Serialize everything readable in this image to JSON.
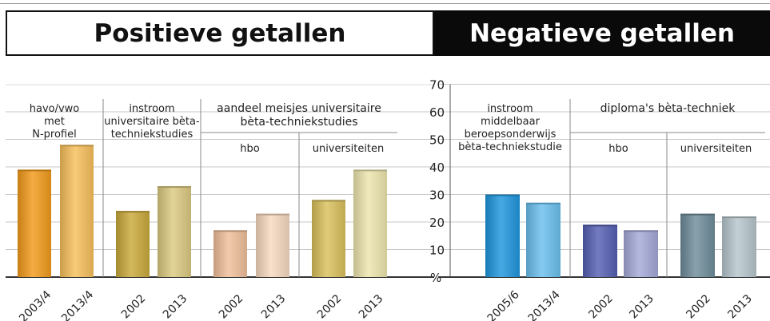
{
  "headers": {
    "positive": "Positieve getallen",
    "negative": "Negatieve getallen"
  },
  "y_axis": {
    "unit_label": "%",
    "ticks": [
      "70",
      "60",
      "50",
      "40",
      "30",
      "20",
      "10"
    ]
  },
  "colors": {
    "orange": "#f29a1a",
    "light_orange": "#f7bf5c",
    "olive_gold": "#c9a93a",
    "khaki": "#dcc980",
    "peach": "#f0c09a",
    "light_peach": "#f6d9c0",
    "gold": "#d9c05c",
    "pale_yellow": "#eee5ad",
    "blue": "#1e96dd",
    "light_blue": "#6ac0ee",
    "indigo": "#545fb2",
    "lavender": "#a5a8d8",
    "slate": "#6e8c9a",
    "light_slate": "#b6c6cc"
  },
  "chart_data": {
    "type": "bar",
    "ylim": [
      0,
      70
    ],
    "ylabel": "%",
    "grid": true,
    "groups": [
      {
        "id": "pos-g1",
        "label_lines": [
          "havo/vwo",
          "met",
          "N-profiel"
        ],
        "sub_label": "",
        "bars": [
          {
            "category": "2003/4",
            "value": 39,
            "color": "orange"
          },
          {
            "category": "2013/4",
            "value": 48,
            "color": "light_orange"
          }
        ]
      },
      {
        "id": "pos-g2",
        "label_lines": [
          "instroom",
          "universitaire bèta-",
          "techniekstudies"
        ],
        "sub_label": "",
        "bars": [
          {
            "category": "2002",
            "value": 24,
            "color": "olive_gold"
          },
          {
            "category": "2013",
            "value": 33,
            "color": "khaki"
          }
        ]
      },
      {
        "id": "pos-g3",
        "label_lines": [],
        "sub_label": "hbo",
        "bars": [
          {
            "category": "2002",
            "value": 17,
            "color": "peach"
          },
          {
            "category": "2013",
            "value": 23,
            "color": "light_peach"
          }
        ]
      },
      {
        "id": "pos-g4",
        "label_lines": [],
        "sub_label": "universiteiten",
        "bars": [
          {
            "category": "2002",
            "value": 28,
            "color": "gold"
          },
          {
            "category": "2013",
            "value": 39,
            "color": "pale_yellow"
          }
        ]
      },
      {
        "id": "neg-g1",
        "label_lines": [
          "instroom",
          "middelbaar",
          "beroepsonderwijs",
          "bèta-techniekstudie"
        ],
        "sub_label": "",
        "bars": [
          {
            "category": "2005/6",
            "value": 30,
            "color": "blue"
          },
          {
            "category": "2013/4",
            "value": 27,
            "color": "light_blue"
          }
        ]
      },
      {
        "id": "neg-g2",
        "label_lines": [],
        "sub_label": "hbo",
        "bars": [
          {
            "category": "2002",
            "value": 19,
            "color": "indigo"
          },
          {
            "category": "2013",
            "value": 17,
            "color": "lavender"
          }
        ]
      },
      {
        "id": "neg-g3",
        "label_lines": [],
        "sub_label": "universiteiten",
        "bars": [
          {
            "category": "2002",
            "value": 23,
            "color": "slate"
          },
          {
            "category": "2013",
            "value": 22,
            "color": "light_slate"
          }
        ]
      }
    ],
    "spanning_labels": [
      {
        "id": "span-pos",
        "lines": [
          "aandeel meisjes universitaire",
          "bèta-techniekstudies"
        ]
      },
      {
        "id": "span-neg",
        "lines": [
          "diploma's bèta-techniek"
        ]
      }
    ]
  }
}
